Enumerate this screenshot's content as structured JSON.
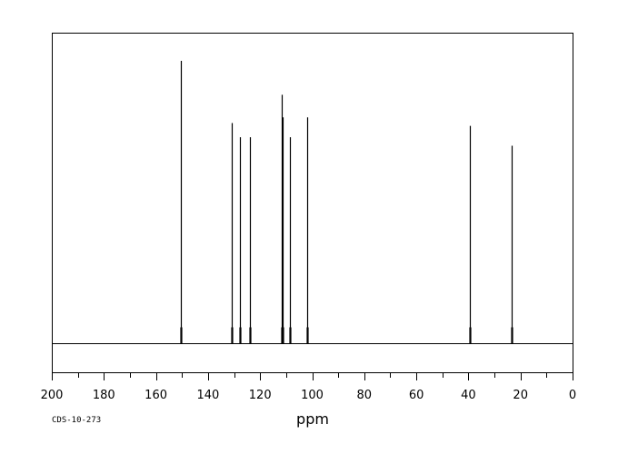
{
  "chart_data": {
    "type": "line",
    "title": "",
    "xlabel": "ppm",
    "ylabel": "",
    "xlim": [
      200,
      0
    ],
    "x_direction": "reversed",
    "y_axis_visible": false,
    "grid": false,
    "x_tick_labels": [
      "200",
      "180",
      "160",
      "140",
      "120",
      "100",
      "80",
      "60",
      "40",
      "20",
      "0"
    ],
    "x_tick_values": [
      200,
      180,
      160,
      140,
      120,
      100,
      80,
      60,
      40,
      20,
      0
    ],
    "x_minor_tick_step": 10,
    "peaks": [
      {
        "ppm": 150.3,
        "intensity": 1.0
      },
      {
        "ppm": 130.8,
        "intensity": 0.78
      },
      {
        "ppm": 127.6,
        "intensity": 0.73
      },
      {
        "ppm": 123.8,
        "intensity": 0.73
      },
      {
        "ppm": 111.7,
        "intensity": 0.88
      },
      {
        "ppm": 111.4,
        "intensity": 0.8
      },
      {
        "ppm": 108.5,
        "intensity": 0.73
      },
      {
        "ppm": 101.9,
        "intensity": 0.8
      },
      {
        "ppm": 39.3,
        "intensity": 0.77
      },
      {
        "ppm": 23.3,
        "intensity": 0.7
      }
    ],
    "colors": {
      "line": "#000000",
      "frame": "#000000",
      "background": "#ffffff"
    }
  },
  "footer": {
    "code": "CDS-10-273"
  }
}
